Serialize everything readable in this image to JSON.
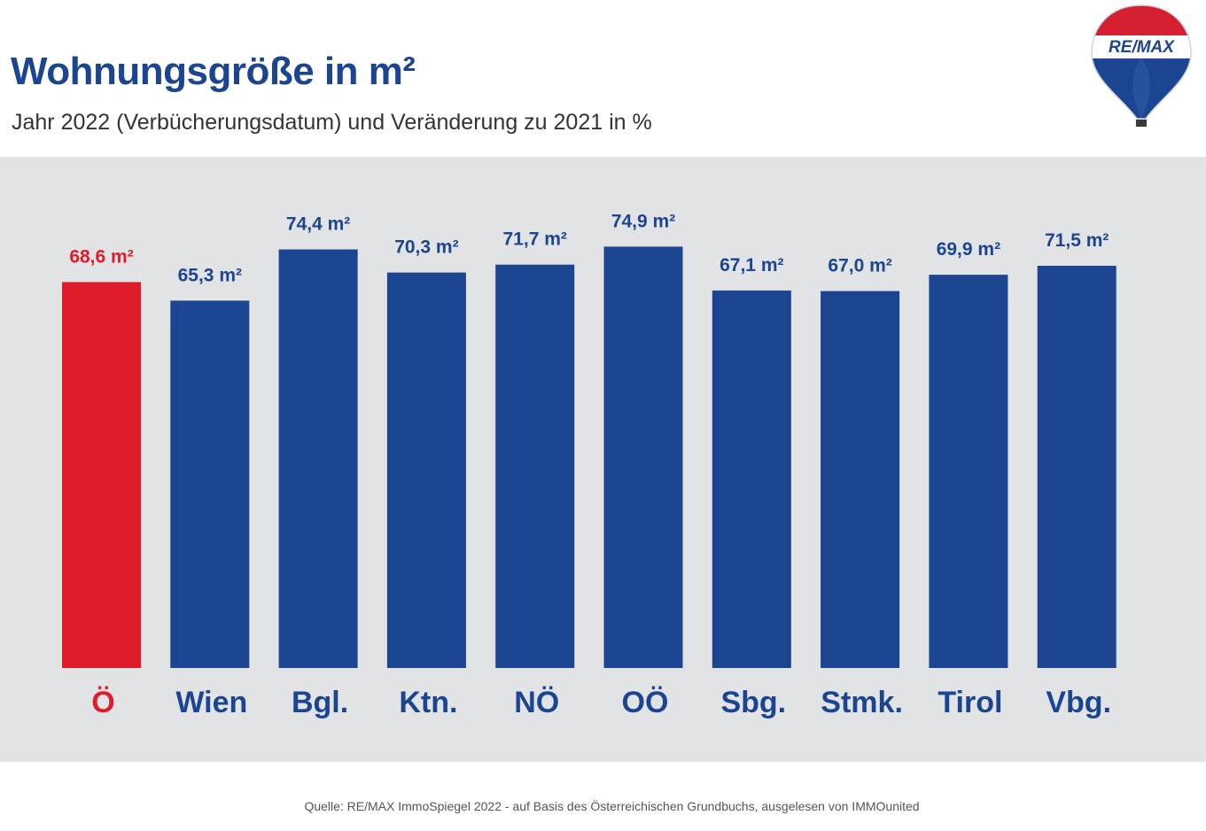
{
  "header": {
    "title": "Wohnungsgröße in m²",
    "subtitle": "Jahr 2022 (Verbücherungsdatum) und Veränderung zu 2021 in %"
  },
  "logo": {
    "text": "RE/MAX",
    "icon": "balloon-logo-icon"
  },
  "colors": {
    "highlight": "#e01b2a",
    "bar": "#1c4591",
    "panel": "#e2e3e5"
  },
  "chart_data": {
    "type": "bar",
    "categories": [
      "Ö",
      "Wien",
      "Bgl.",
      "Ktn.",
      "NÖ",
      "OÖ",
      "Sbg.",
      "Stmk.",
      "Tirol",
      "Vbg."
    ],
    "values": [
      68.6,
      65.3,
      74.4,
      70.3,
      71.7,
      74.9,
      67.1,
      67.0,
      69.9,
      71.5
    ],
    "value_labels": [
      "68,6 m²",
      "65,3 m²",
      "74,4 m²",
      "70,3 m²",
      "71,7 m²",
      "74,9 m²",
      "67,1 m²",
      "67,0 m²",
      "69,9 m²",
      "71,5 m²"
    ],
    "highlight_index": 0,
    "title": "Wohnungsgröße in m²",
    "xlabel": "",
    "ylabel": "",
    "ylim": [
      0,
      80
    ],
    "grid": false
  },
  "footer": {
    "source": "Quelle: RE/MAX ImmoSpiegel 2022 - auf Basis des Österreichischen Grundbuchs, ausgelesen von IMMOunited"
  }
}
